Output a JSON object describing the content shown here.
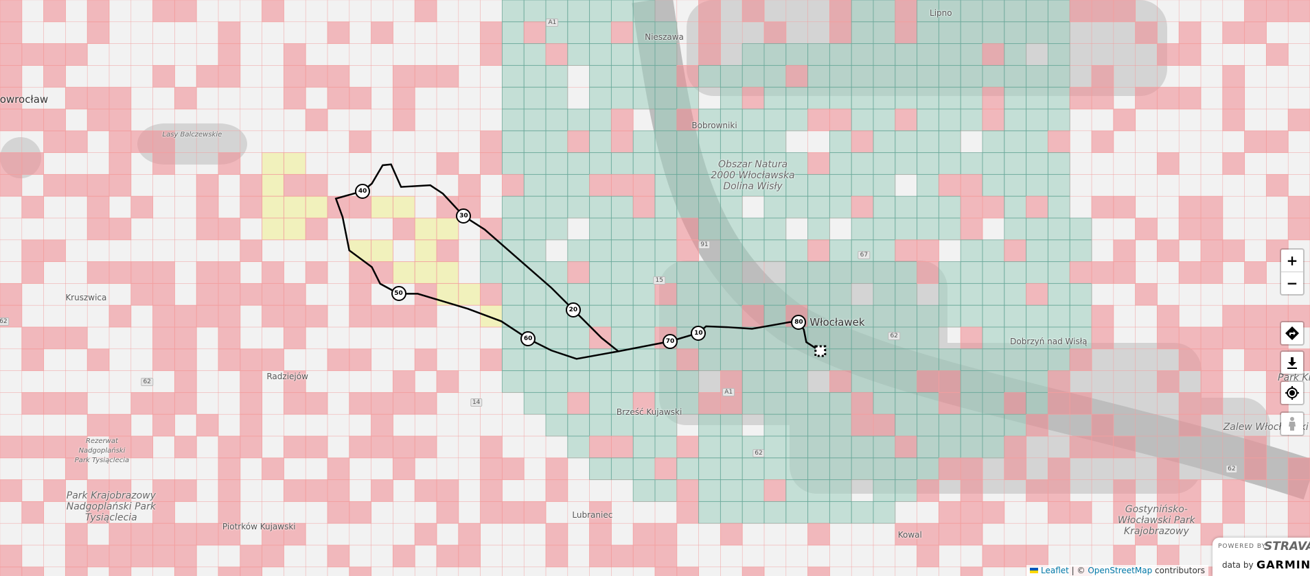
{
  "places": [
    {
      "name": "Inowrocław",
      "cls": "big"
    },
    {
      "name": "Lasy Balczewskie",
      "cls": "small"
    },
    {
      "name": "Kruszwica",
      "cls": ""
    },
    {
      "name": "Radziejów",
      "cls": ""
    },
    {
      "name": "Rezerwat Nadgoplański Park Tysiąclecia",
      "cls": "small"
    },
    {
      "name": "Park Krajobrazowy Nadgoplański Park Tysiąclecia",
      "cls": "park"
    },
    {
      "name": "Piotrków Kujawski",
      "cls": ""
    },
    {
      "name": "Lubraniec",
      "cls": ""
    },
    {
      "name": "Brześć Kujawski",
      "cls": ""
    },
    {
      "name": "Włocławek",
      "cls": "big"
    },
    {
      "name": "Bobrowniki",
      "cls": ""
    },
    {
      "name": "Nieszawa",
      "cls": ""
    },
    {
      "name": "Lipno",
      "cls": ""
    },
    {
      "name": "Obszar Natura 2000 Włocławska Dolina Wisły",
      "cls": "park"
    },
    {
      "name": "Dobrzyń nad Wisłą",
      "cls": ""
    },
    {
      "name": "Zalew Włocławski",
      "cls": "park"
    },
    {
      "name": "Park Kraj",
      "cls": "park"
    },
    {
      "name": "Gostynińsko-Włocławski Park Krajobrazowy",
      "cls": "park"
    },
    {
      "name": "Kowal",
      "cls": ""
    }
  ],
  "roads": [
    "A1",
    "91",
    "67",
    "62",
    "62",
    "62",
    "14",
    "15",
    "A1",
    "62",
    "62"
  ],
  "route_markers": [
    "10",
    "20",
    "30",
    "40",
    "50",
    "60",
    "70",
    "80"
  ],
  "controls": {
    "zoom_in": "+",
    "zoom_out": "−",
    "icons": [
      "directions-icon",
      "download-icon",
      "locate-icon",
      "street-view-icon"
    ]
  },
  "attribution": {
    "leaflet": "Leaflet",
    "separator": " | © ",
    "osm": "OpenStreetMap",
    "contributors": " contributors"
  },
  "branding": {
    "powered_by": "POWERED BY",
    "strava": "STRAVA",
    "data_by": "data by",
    "garmin": "GARMIN"
  },
  "colors": {
    "visited": "#9fd0c0",
    "unvisited": "#f08890",
    "highlight": "#f0f090",
    "route": "#000000"
  }
}
